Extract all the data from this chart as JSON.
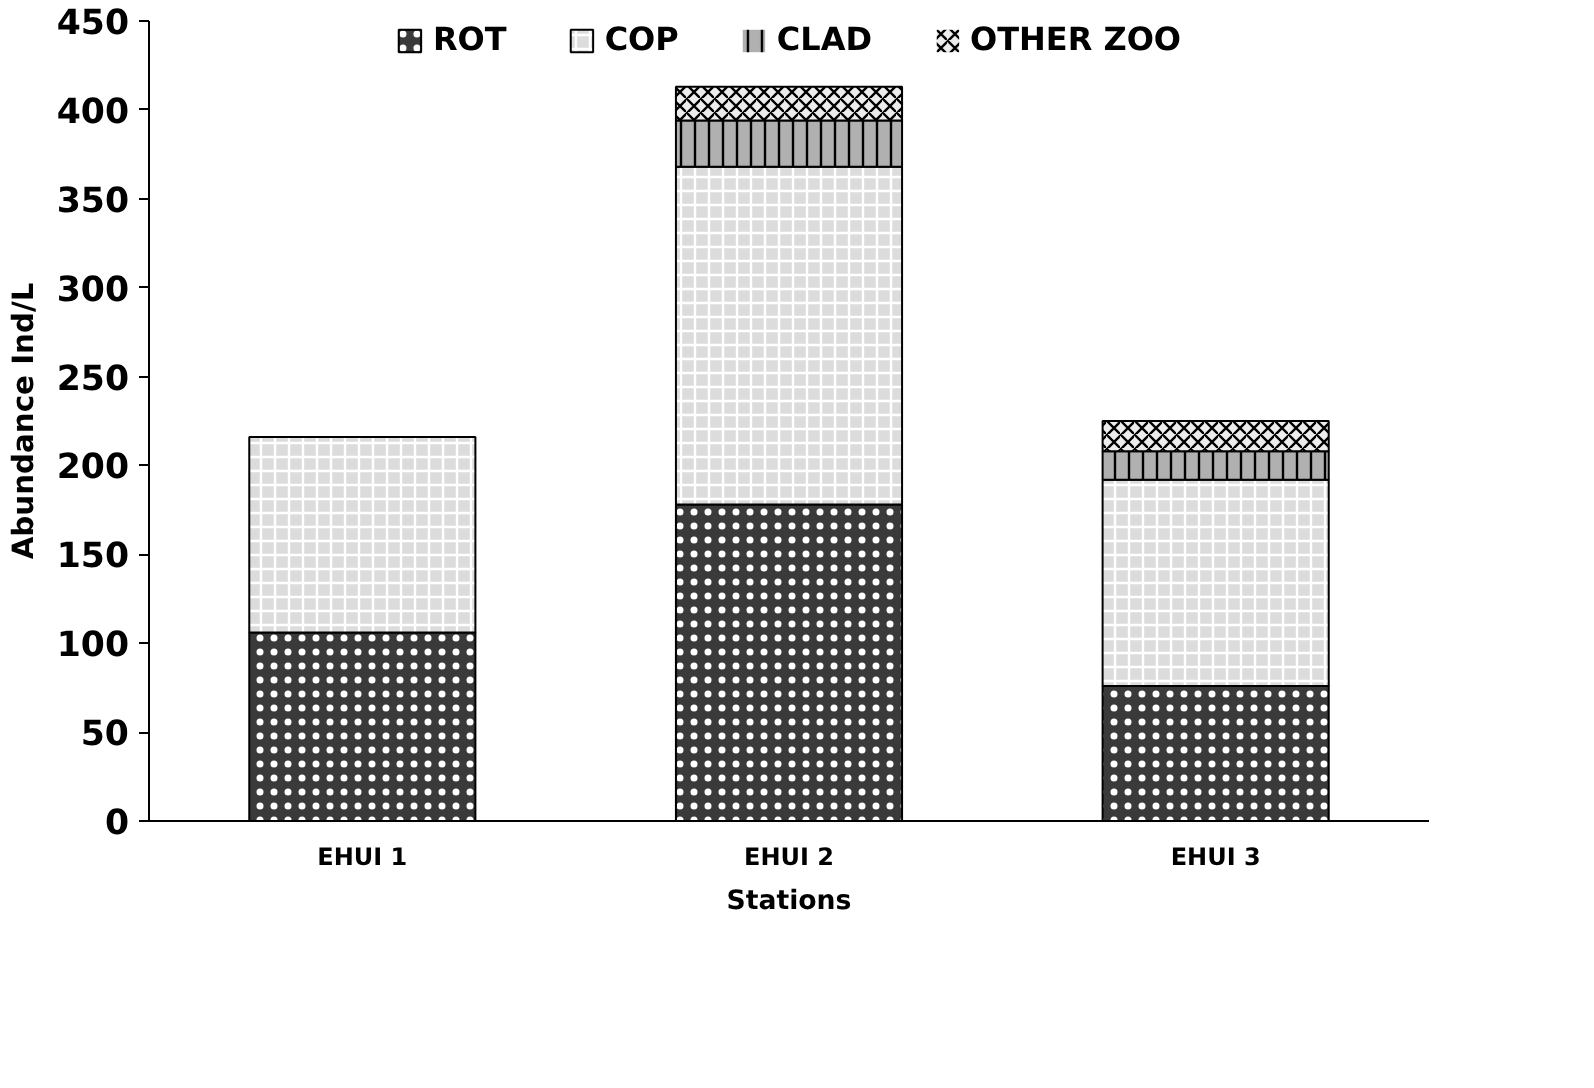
{
  "chart_data": {
    "type": "bar",
    "stacked": true,
    "xlabel": "Stations",
    "ylabel": "Abundance Ind/L",
    "categories": [
      "EHUI 1",
      "EHUI 2",
      "EHUI 3"
    ],
    "series": [
      {
        "name": "ROT",
        "color": "#3a3a3a",
        "values": [
          106,
          178,
          76
        ]
      },
      {
        "name": "COP",
        "color": "#dcdcdc",
        "values": [
          110,
          190,
          116
        ]
      },
      {
        "name": "CLAD",
        "color": "#b0b0b0",
        "values": [
          0,
          26,
          16
        ]
      },
      {
        "name": "OTHER ZOO",
        "color": "#ececec",
        "values": [
          0,
          19,
          17
        ]
      }
    ],
    "ylim": [
      0,
      450
    ],
    "yticks": [
      0,
      50,
      100,
      150,
      200,
      250,
      300,
      350,
      400,
      450
    ],
    "grid": false,
    "legend": "top"
  }
}
